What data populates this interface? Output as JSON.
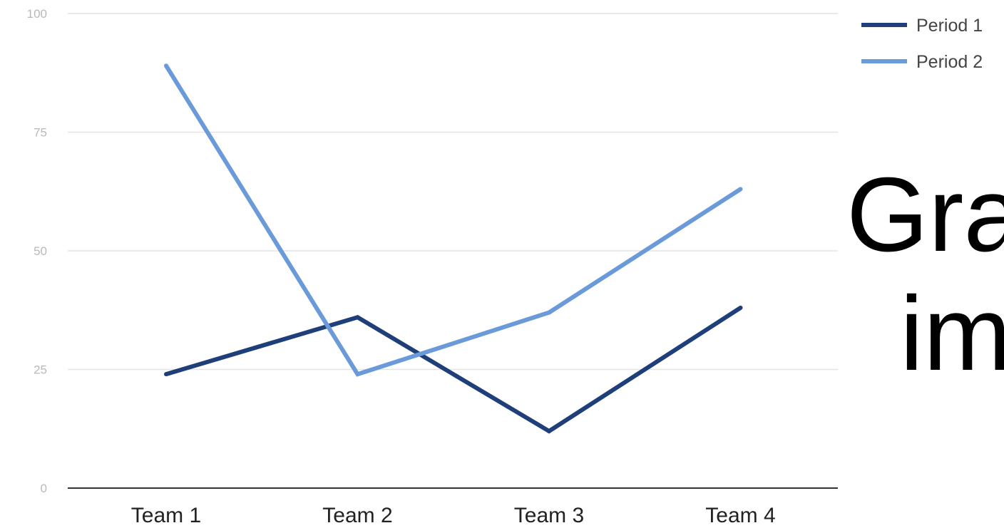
{
  "overlay_text": {
    "line1": "Gra",
    "line2": "im"
  },
  "chart_data": {
    "type": "line",
    "categories": [
      "Team 1",
      "Team 2",
      "Team 3",
      "Team 4"
    ],
    "series": [
      {
        "name": "Period 1",
        "color": "#1f3f7a",
        "values": [
          24,
          36,
          12,
          38
        ]
      },
      {
        "name": "Period 2",
        "color": "#6a9ad9",
        "values": [
          89,
          24,
          37,
          63
        ]
      }
    ],
    "yticks": [
      0,
      25,
      50,
      75,
      100
    ],
    "ylim": [
      0,
      100
    ],
    "grid": true,
    "legend_position": "top-right",
    "title": "",
    "xlabel": "",
    "ylabel": ""
  }
}
